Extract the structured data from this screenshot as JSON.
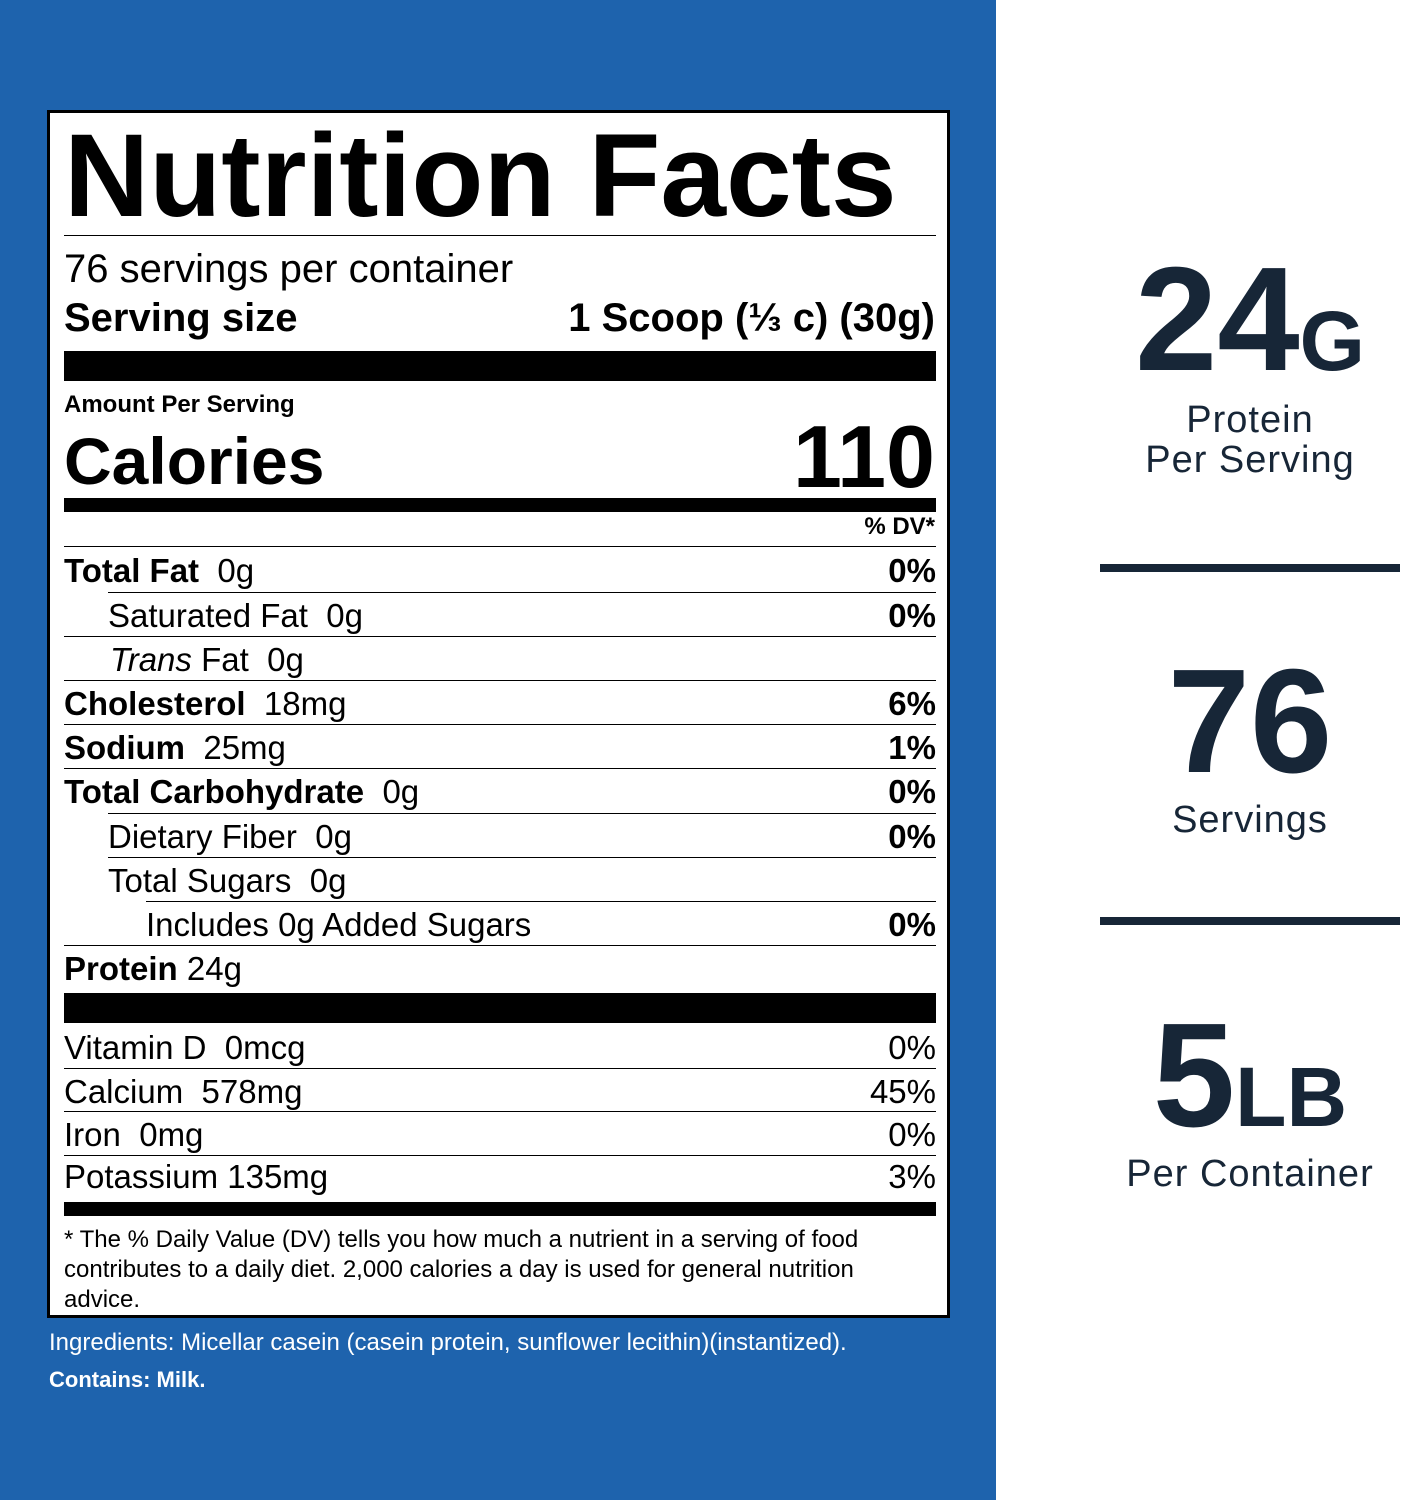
{
  "label": {
    "title": "Nutrition Facts",
    "servings_per_container": "76 servings per container",
    "serving_size_label": "Serving size",
    "serving_size_value": "1 Scoop (⅓ c) (30g)",
    "amount_per_serving": "Amount Per Serving",
    "calories_label": "Calories",
    "calories_value": "110",
    "dv_header": "% DV*",
    "nutrients": [
      {
        "name": "Total Fat",
        "amount": "0g",
        "dv": "0%"
      },
      {
        "name": "Saturated Fat",
        "amount": "0g",
        "dv": "0%"
      },
      {
        "name_italic": "Trans",
        "name": "Fat",
        "amount": "0g",
        "dv": ""
      },
      {
        "name": "Cholesterol",
        "amount": "18mg",
        "dv": "6%"
      },
      {
        "name": "Sodium",
        "amount": "25mg",
        "dv": "1%"
      },
      {
        "name": "Total Carbohydrate",
        "amount": "0g",
        "dv": "0%"
      },
      {
        "name": "Dietary Fiber",
        "amount": "0g",
        "dv": "0%"
      },
      {
        "name": "Total Sugars",
        "amount": "0g",
        "dv": ""
      },
      {
        "name": "Includes 0g Added Sugars",
        "dv": "0%"
      },
      {
        "name": "Protein",
        "amount": "24g"
      }
    ],
    "vitamins": [
      {
        "name": "Vitamin D",
        "amount": "0mcg",
        "dv": "0%"
      },
      {
        "name": "Calcium",
        "amount": "578mg",
        "dv": "45%"
      },
      {
        "name": "Iron",
        "amount": "0mg",
        "dv": "0%"
      },
      {
        "name": "Potassium",
        "amount": "135mg",
        "dv": "3%"
      }
    ],
    "footnote": "* The % Daily Value (DV) tells you how much a nutrient in a serving of food contributes to a daily diet. 2,000 calories a day is used for general nutrition advice."
  },
  "ingredients": "Ingredients: Micellar casein (casein protein, sunflower lecithin)(instantized).",
  "contains": "Contains: Milk.",
  "stats": [
    {
      "number": "24",
      "unit": "G",
      "caption_line1": "Protein",
      "caption_line2": "Per Serving"
    },
    {
      "number": "76",
      "unit": "",
      "caption_line1": "Servings",
      "caption_line2": ""
    },
    {
      "number": "5",
      "unit": "LB",
      "caption_line1": "Per Container",
      "caption_line2": ""
    }
  ],
  "colors": {
    "panel_blue": "#1e63ad",
    "stat_navy": "#172637"
  }
}
